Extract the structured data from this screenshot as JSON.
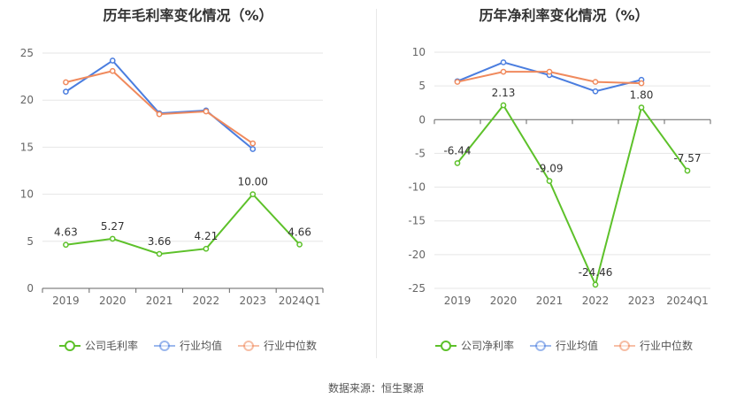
{
  "source_text": "数据来源：恒生聚源",
  "chart_data": [
    {
      "type": "line",
      "title": "历年毛利率变化情况（%）",
      "categories": [
        "2019",
        "2020",
        "2021",
        "2022",
        "2023",
        "2024Q1"
      ],
      "ylim": [
        0,
        25
      ],
      "yticks": [
        0,
        5,
        10,
        15,
        20,
        25
      ],
      "grid": true,
      "legend_position": "bottom",
      "series": [
        {
          "name": "公司毛利率",
          "color": "#5dc12a",
          "values": [
            4.63,
            5.27,
            3.66,
            4.21,
            10.0,
            4.66
          ],
          "labels": [
            "4.63",
            "5.27",
            "3.66",
            "4.21",
            "10.00",
            "4.66"
          ]
        },
        {
          "name": "行业均值",
          "color": "#4a7ddf",
          "values": [
            20.9,
            24.2,
            18.6,
            18.9,
            14.8,
            null
          ],
          "labels": null
        },
        {
          "name": "行业中位数",
          "color": "#f08a5d",
          "values": [
            21.9,
            23.1,
            18.5,
            18.8,
            15.4,
            null
          ],
          "labels": null
        }
      ]
    },
    {
      "type": "line",
      "title": "历年净利率变化情况（%）",
      "categories": [
        "2019",
        "2020",
        "2021",
        "2022",
        "2023",
        "2024Q1"
      ],
      "ylim": [
        -25,
        10
      ],
      "yticks": [
        -25,
        -20,
        -15,
        -10,
        -5,
        0,
        5,
        10
      ],
      "grid": true,
      "legend_position": "bottom",
      "series": [
        {
          "name": "公司净利率",
          "color": "#5dc12a",
          "values": [
            -6.44,
            2.13,
            -9.09,
            -24.46,
            1.8,
            -7.57
          ],
          "labels": [
            "-6.44",
            "2.13",
            "-9.09",
            "-24.46",
            "1.80",
            "-7.57"
          ]
        },
        {
          "name": "行业均值",
          "color": "#4a7ddf",
          "values": [
            5.7,
            8.5,
            6.6,
            4.2,
            5.9,
            null
          ],
          "labels": null
        },
        {
          "name": "行业中位数",
          "color": "#f08a5d",
          "values": [
            5.6,
            7.1,
            7.1,
            5.6,
            5.4,
            null
          ],
          "labels": null
        }
      ]
    }
  ]
}
